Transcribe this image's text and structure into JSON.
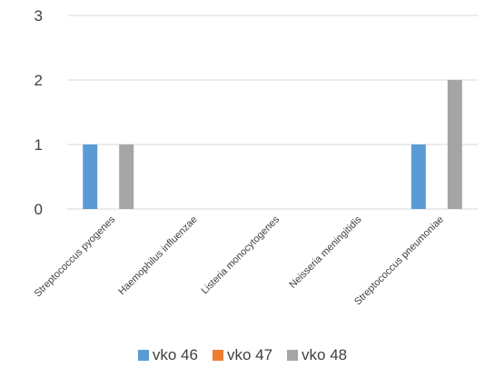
{
  "chart_data": {
    "type": "bar",
    "title": "",
    "xlabel": "",
    "ylabel": "",
    "categories": [
      "Streptococcus pyogenes",
      "Haemophilus influenzae",
      "Listeria monocytogenes",
      "Neisseria meningitidis",
      "Streptococcus pneumoniae"
    ],
    "series": [
      {
        "name": "vko 46",
        "color": "#5B9BD5",
        "values": [
          1,
          0,
          0,
          0,
          1
        ]
      },
      {
        "name": "vko 47",
        "color": "#ED7D31",
        "values": [
          0,
          0,
          0,
          0,
          0
        ]
      },
      {
        "name": "vko 48",
        "color": "#A5A5A5",
        "values": [
          1,
          0,
          0,
          0,
          2
        ]
      }
    ],
    "ylim": [
      0,
      3
    ],
    "yticks": [
      "0",
      "1",
      "2",
      "3"
    ],
    "grid": true,
    "legend": "bottom"
  }
}
